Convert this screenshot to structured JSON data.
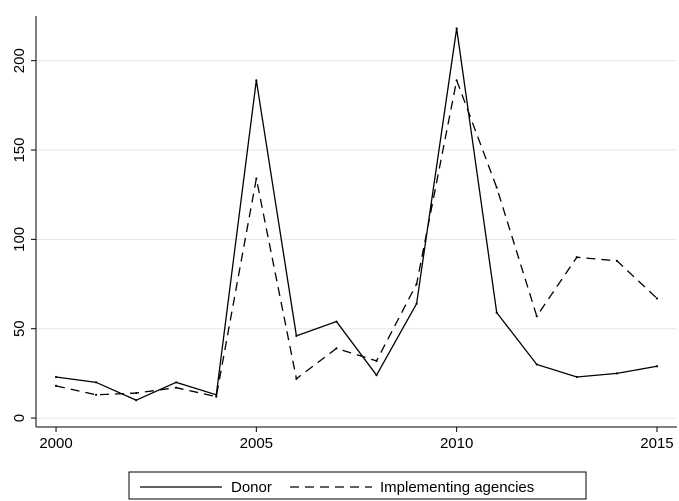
{
  "chart_data": {
    "type": "line",
    "title": "",
    "xlabel": "",
    "ylabel": "",
    "xlim": [
      1999.5,
      2015.5
    ],
    "ylim": [
      -5,
      225
    ],
    "x_ticks": [
      2000,
      2005,
      2010,
      2015
    ],
    "y_ticks": [
      0,
      50,
      100,
      150,
      200
    ],
    "x_tick_labels": [
      "2000",
      "2005",
      "2010",
      "2015"
    ],
    "y_tick_labels": [
      "0",
      "50",
      "100",
      "150",
      "200"
    ],
    "grid": true,
    "legend_position": "bottom",
    "x": [
      2000,
      2001,
      2002,
      2003,
      2004,
      2005,
      2006,
      2007,
      2008,
      2009,
      2010,
      2011,
      2012,
      2013,
      2014,
      2015
    ],
    "series": [
      {
        "name": "Donor",
        "style": "solid",
        "color": "#000000",
        "values": [
          23,
          20,
          10,
          20,
          13,
          189,
          46,
          54,
          24,
          64,
          218,
          59,
          30,
          23,
          25,
          29
        ]
      },
      {
        "name": "Implementing agencies",
        "style": "dashed",
        "color": "#000000",
        "values": [
          18,
          13,
          14,
          17,
          12,
          134,
          22,
          39,
          32,
          75,
          189,
          129,
          57,
          90,
          88,
          67
        ]
      }
    ]
  }
}
